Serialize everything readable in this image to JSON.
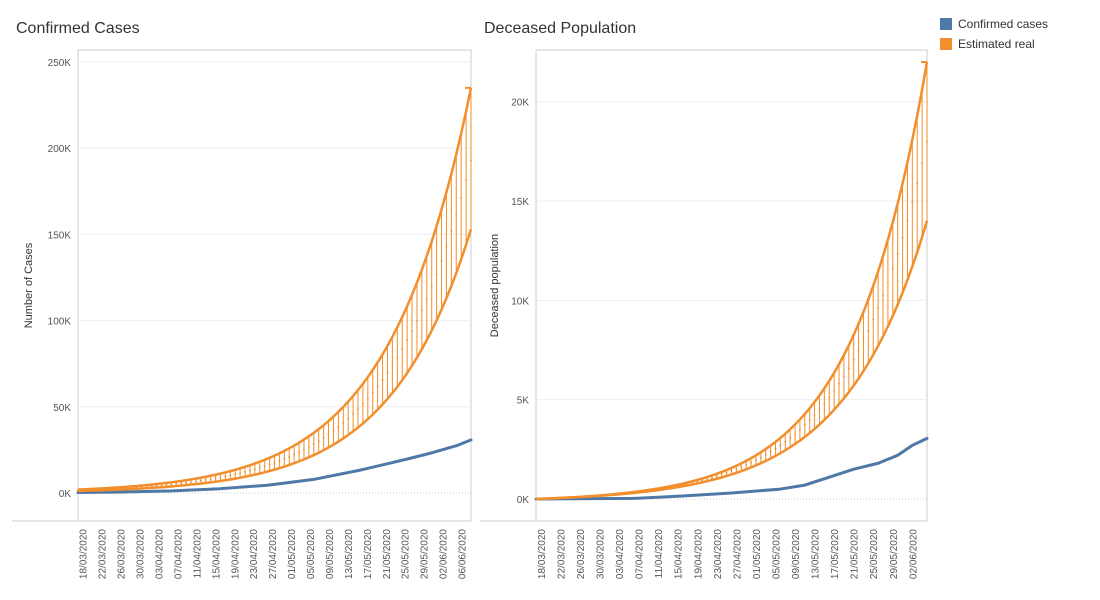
{
  "colors": {
    "confirmed": "#4e79a7",
    "estimated": "#f28e2b",
    "grid": "#eeeeee",
    "axis": "#cccccc"
  },
  "legend": [
    {
      "label": "Confirmed cases",
      "color": "#4e79a7"
    },
    {
      "label": "Estimated real",
      "color": "#f28e2b"
    }
  ],
  "chart_data": [
    {
      "type": "line",
      "title": "Confirmed Cases",
      "ylabel": "Number of Cases",
      "xlabel": "",
      "ylim": [
        0,
        250000
      ],
      "yticks": [
        0,
        50000,
        100000,
        150000,
        200000,
        250000
      ],
      "ytick_labels": [
        "0K",
        "50K",
        "100K",
        "150K",
        "200K",
        "250K"
      ],
      "x_range": [
        "17/03/2020",
        "08/06/2020"
      ],
      "xtick_labels": [
        "18/03/2020",
        "22/03/2020",
        "26/03/2020",
        "30/03/2020",
        "03/04/2020",
        "07/04/2020",
        "11/04/2020",
        "15/04/2020",
        "19/04/2020",
        "23/04/2020",
        "27/04/2020",
        "01/05/2020",
        "05/05/2020",
        "09/05/2020",
        "13/05/2020",
        "17/05/2020",
        "21/05/2020",
        "25/05/2020",
        "29/05/2020",
        "02/06/2020",
        "06/06/2020"
      ],
      "series": [
        {
          "name": "Confirmed cases",
          "x": [
            "17/03/2020",
            "27/03/2020",
            "06/04/2020",
            "16/04/2020",
            "26/04/2020",
            "06/05/2020",
            "16/05/2020",
            "26/05/2020",
            "31/05/2020",
            "05/06/2020",
            "08/06/2020"
          ],
          "values": [
            300,
            600,
            1200,
            2500,
            4500,
            8000,
            13500,
            20000,
            23500,
            27500,
            30800
          ]
        },
        {
          "name": "Estimated real",
          "kind": "range",
          "x": [
            "17/03/2020",
            "08/06/2020"
          ],
          "upper": [
            2000,
            235000
          ],
          "mid": [
            1600,
            193000
          ],
          "lower": [
            1200,
            153000
          ]
        }
      ],
      "grid": true,
      "legend": "right"
    },
    {
      "type": "line",
      "title": "Deceased Population",
      "ylabel": "Deceased population",
      "xlabel": "",
      "ylim": [
        0,
        22000
      ],
      "yticks": [
        0,
        5000,
        10000,
        15000,
        20000
      ],
      "ytick_labels": [
        "0K",
        "5K",
        "10K",
        "15K",
        "20K"
      ],
      "x_range": [
        "17/03/2020",
        "05/06/2020"
      ],
      "xtick_labels": [
        "18/03/2020",
        "22/03/2020",
        "26/03/2020",
        "30/03/2020",
        "03/04/2020",
        "07/04/2020",
        "11/04/2020",
        "15/04/2020",
        "19/04/2020",
        "23/04/2020",
        "27/04/2020",
        "01/05/2020",
        "05/05/2020",
        "09/05/2020",
        "13/05/2020",
        "17/05/2020",
        "21/05/2020",
        "25/05/2020",
        "29/05/2020",
        "02/06/2020"
      ],
      "series": [
        {
          "name": "Confirmed cases",
          "x": [
            "17/03/2020",
            "06/04/2020",
            "16/04/2020",
            "26/04/2020",
            "06/05/2020",
            "11/05/2020",
            "16/05/2020",
            "21/05/2020",
            "26/05/2020",
            "30/05/2020",
            "02/06/2020",
            "05/06/2020"
          ],
          "values": [
            0,
            30,
            150,
            300,
            500,
            700,
            1100,
            1500,
            1800,
            2200,
            2700,
            3050
          ]
        },
        {
          "name": "Estimated real",
          "kind": "range",
          "x": [
            "17/03/2020",
            "05/06/2020"
          ],
          "upper": [
            0,
            22000
          ],
          "mid": [
            0,
            18000
          ],
          "lower": [
            0,
            14000
          ]
        }
      ],
      "grid": true,
      "legend": "right"
    }
  ]
}
